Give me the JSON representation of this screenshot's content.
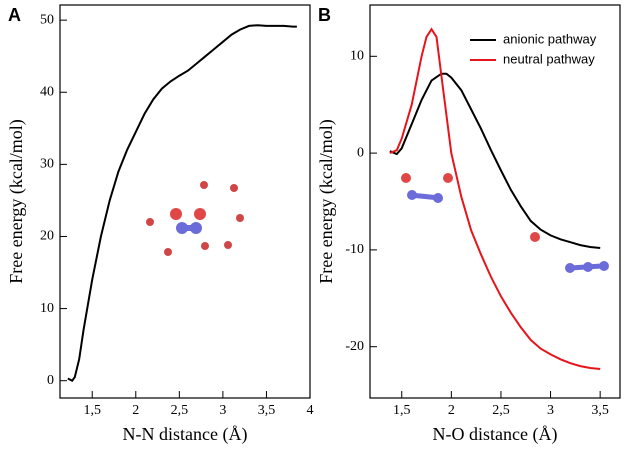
{
  "chart_data": [
    {
      "type": "line",
      "panel": "A",
      "xlabel": "N-N distance (Å)",
      "ylabel": "Free energy (kcal/mol)",
      "xlim": [
        1.13,
        4.0
      ],
      "ylim": [
        -2.4,
        52.1
      ],
      "xticks": [
        {
          "value": 1.5,
          "label": "1,5"
        },
        2,
        {
          "value": 2.5,
          "label": "2,5"
        },
        3,
        {
          "value": 3.5,
          "label": "3,5"
        },
        4
      ],
      "yticks": [
        0,
        10,
        20,
        30,
        40,
        50
      ],
      "series": [
        {
          "color": "#000000",
          "x": [
            1.22,
            1.27,
            1.3,
            1.35,
            1.4,
            1.5,
            1.6,
            1.7,
            1.8,
            1.9,
            2.0,
            2.1,
            2.2,
            2.3,
            2.4,
            2.5,
            2.6,
            2.7,
            2.8,
            2.9,
            3.0,
            3.1,
            3.2,
            3.3,
            3.4,
            3.5,
            3.6,
            3.7,
            3.8,
            3.85
          ],
          "values": [
            0.3,
            0,
            0.5,
            3,
            7,
            14,
            20,
            25,
            29,
            32,
            34.5,
            37,
            39,
            40.5,
            41.5,
            42.3,
            43,
            44,
            45,
            46,
            47,
            48,
            48.7,
            49.2,
            49.3,
            49.2,
            49.2,
            49.2,
            49.1,
            49.1
          ]
        }
      ]
    },
    {
      "type": "line",
      "panel": "B",
      "xlabel": "N-O distance (Å)",
      "ylabel": "Free energy (kcal/mol)",
      "xlim": [
        1.18,
        3.7
      ],
      "ylim": [
        -25.3,
        15.3
      ],
      "xticks": [
        {
          "value": 1.5,
          "label": "1,5"
        },
        2,
        {
          "value": 2.5,
          "label": "2,5"
        },
        3,
        {
          "value": 3.5,
          "label": "3,5"
        }
      ],
      "yticks": [
        -20,
        -10,
        0,
        10
      ],
      "legend": "upper-right",
      "series": [
        {
          "name": "anionic pathway",
          "color": "#000000",
          "x": [
            1.38,
            1.45,
            1.5,
            1.6,
            1.7,
            1.8,
            1.9,
            1.95,
            2.0,
            2.1,
            2.2,
            2.3,
            2.4,
            2.5,
            2.6,
            2.7,
            2.8,
            2.9,
            3.0,
            3.1,
            3.2,
            3.3,
            3.4,
            3.5
          ],
          "values": [
            0.2,
            -0.1,
            0.5,
            3,
            5.5,
            7.5,
            8.2,
            8.2,
            7.8,
            6.5,
            4.5,
            2.5,
            0.3,
            -1.8,
            -3.8,
            -5.5,
            -7,
            -7.9,
            -8.5,
            -8.9,
            -9.2,
            -9.5,
            -9.7,
            -9.8
          ]
        },
        {
          "name": "neutral pathway",
          "color": "#e8141b",
          "x": [
            1.38,
            1.45,
            1.5,
            1.6,
            1.7,
            1.75,
            1.8,
            1.85,
            1.9,
            2.0,
            2.1,
            2.2,
            2.3,
            2.4,
            2.5,
            2.6,
            2.7,
            2.8,
            2.9,
            3.0,
            3.1,
            3.2,
            3.3,
            3.4,
            3.5
          ],
          "values": [
            0,
            0.3,
            1.5,
            5,
            10,
            12,
            12.8,
            12,
            8,
            0,
            -4.5,
            -8,
            -10.5,
            -12.8,
            -14.8,
            -16.5,
            -18,
            -19.3,
            -20.2,
            -20.8,
            -21.3,
            -21.7,
            -22,
            -22.2,
            -22.3
          ]
        }
      ]
    }
  ]
}
